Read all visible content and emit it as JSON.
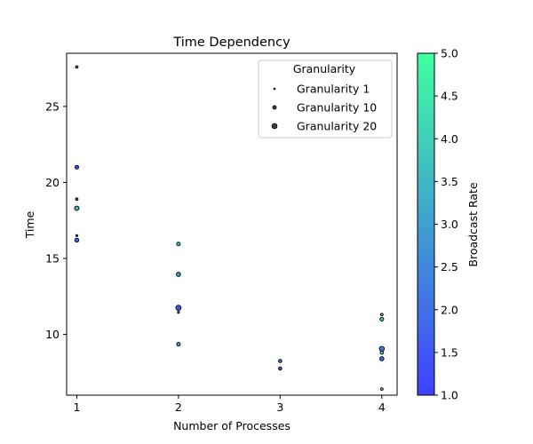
{
  "chart_data": {
    "type": "scatter",
    "title": "Time Dependency",
    "xlabel": "Number of Processes",
    "ylabel": "Time",
    "xlim": [
      0.9,
      4.15
    ],
    "ylim": [
      6.0,
      28.5
    ],
    "xticks": [
      1,
      2,
      3,
      4
    ],
    "yticks": [
      10,
      15,
      20,
      25
    ],
    "grid": false,
    "legend": {
      "title": "Granularity",
      "placement": "upper right",
      "entries": [
        {
          "label": "Granularity 1",
          "size": 1
        },
        {
          "label": "Granularity 10",
          "size": 10
        },
        {
          "label": "Granularity 20",
          "size": 20
        }
      ]
    },
    "colorbar": {
      "label": "Broadcast Rate",
      "range": [
        1.0,
        5.0
      ],
      "ticks": [
        1.0,
        1.5,
        2.0,
        2.5,
        3.0,
        3.5,
        4.0,
        4.5,
        5.0
      ],
      "colormap": [
        "#4040ff",
        "#40ffa0"
      ]
    },
    "points": [
      {
        "x": 1,
        "y": 27.6,
        "granularity": 5,
        "broadcast_rate": 2.6
      },
      {
        "x": 1,
        "y": 21.0,
        "granularity": 10,
        "broadcast_rate": 1.3
      },
      {
        "x": 1,
        "y": 18.9,
        "granularity": 5,
        "broadcast_rate": 1.6
      },
      {
        "x": 1,
        "y": 18.3,
        "granularity": 15,
        "broadcast_rate": 3.6
      },
      {
        "x": 1,
        "y": 16.5,
        "granularity": 3,
        "broadcast_rate": 1.6
      },
      {
        "x": 1,
        "y": 16.2,
        "granularity": 12,
        "broadcast_rate": 1.7
      },
      {
        "x": 2,
        "y": 15.95,
        "granularity": 10,
        "broadcast_rate": 3.7
      },
      {
        "x": 2,
        "y": 13.95,
        "granularity": 13,
        "broadcast_rate": 2.9
      },
      {
        "x": 2,
        "y": 11.75,
        "granularity": 20,
        "broadcast_rate": 1.5
      },
      {
        "x": 2,
        "y": 11.45,
        "granularity": 3,
        "broadcast_rate": 1.6
      },
      {
        "x": 2,
        "y": 9.35,
        "granularity": 10,
        "broadcast_rate": 3.2
      },
      {
        "x": 3,
        "y": 8.25,
        "granularity": 8,
        "broadcast_rate": 2.1
      },
      {
        "x": 3,
        "y": 7.75,
        "granularity": 8,
        "broadcast_rate": 1.4
      },
      {
        "x": 4,
        "y": 11.3,
        "granularity": 5,
        "broadcast_rate": 4.0
      },
      {
        "x": 4,
        "y": 11.0,
        "granularity": 10,
        "broadcast_rate": 3.9
      },
      {
        "x": 4,
        "y": 9.05,
        "granularity": 18,
        "broadcast_rate": 2.3
      },
      {
        "x": 4,
        "y": 8.8,
        "granularity": 8,
        "broadcast_rate": 4.2
      },
      {
        "x": 4,
        "y": 8.4,
        "granularity": 13,
        "broadcast_rate": 1.8
      },
      {
        "x": 4,
        "y": 6.4,
        "granularity": 5,
        "broadcast_rate": 4.3
      }
    ]
  }
}
